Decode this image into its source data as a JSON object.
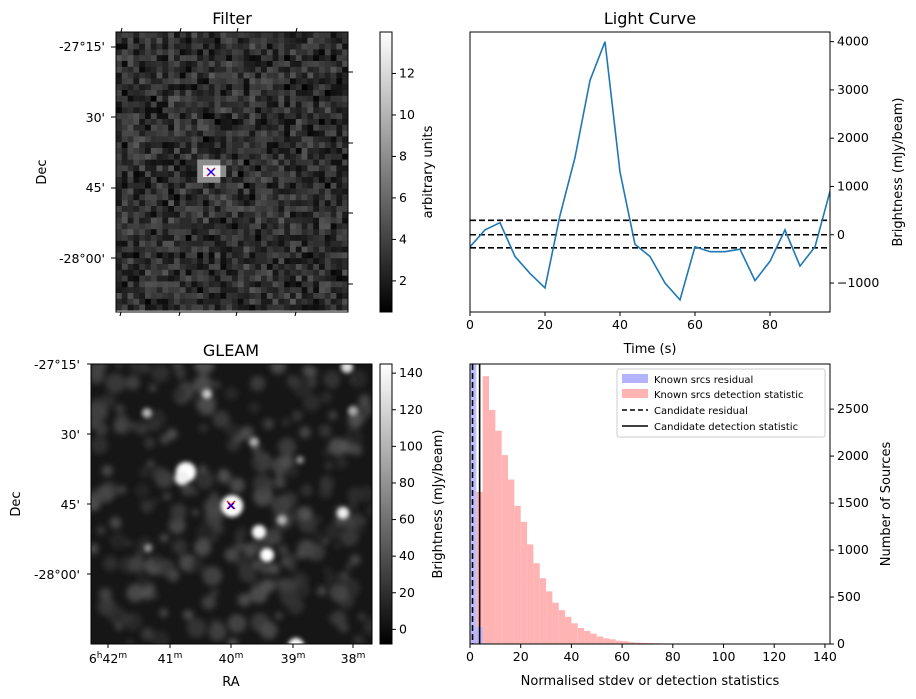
{
  "panels": {
    "filter": {
      "title": "Filter",
      "ylabel": "Dec",
      "colorbar_label": "arbitrary units"
    },
    "light_curve": {
      "title": "Light Curve",
      "xlabel": "Time (s)",
      "ylabel": "Brightness (mJy/beam)"
    },
    "gleam": {
      "title": "GLEAM",
      "xlabel": "RA",
      "ylabel": "Dec",
      "colorbar_label": "Brightness (mJy/beam)"
    },
    "histogram": {
      "xlabel": "Normalised stdev or detection statistics",
      "ylabel": "Number of Sources"
    }
  },
  "dec_ticks": [
    "-27°15'",
    "30'",
    "45'",
    "-28°00'"
  ],
  "ra_ticks": [
    {
      "main": "6",
      "sup1": "h",
      "mid": "42",
      "sup2": "m"
    },
    {
      "main": "41",
      "sup1": "",
      "mid": "",
      "sup2": "m"
    },
    {
      "main": "40",
      "sup1": "",
      "mid": "",
      "sup2": "m"
    },
    {
      "main": "39",
      "sup1": "",
      "mid": "",
      "sup2": "m"
    },
    {
      "main": "38",
      "sup1": "",
      "mid": "",
      "sup2": "m"
    }
  ],
  "colors": {
    "line": "#1f77b4",
    "known_residual": "#b3b3ff",
    "known_detection": "#ffb3b3",
    "marker_red": "#ff0000",
    "marker_blue": "#0000ff"
  },
  "chart_data": [
    {
      "type": "heatmap",
      "title": "Filter",
      "ylabel": "Dec",
      "colorbar": {
        "label": "arbitrary units",
        "range": [
          0.5,
          14
        ],
        "ticks": [
          2,
          4,
          6,
          8,
          10,
          12
        ]
      },
      "yticks": [
        "-27°15'",
        "30'",
        "45'",
        "-28°00'"
      ],
      "grid": false,
      "description_values": {
        "peak": 14,
        "background_range": [
          1,
          5
        ]
      }
    },
    {
      "type": "line",
      "title": "Light Curve",
      "xlabel": "Time (s)",
      "ylabel": "Brightness (mJy/beam)",
      "xlim": [
        0,
        96
      ],
      "ylim": [
        -1600,
        4200
      ],
      "xticks": [
        0,
        20,
        40,
        60,
        80
      ],
      "yticks": [
        -1000,
        0,
        1000,
        2000,
        3000,
        4000
      ],
      "x": [
        0,
        4,
        8,
        12,
        16,
        20,
        24,
        28,
        32,
        36,
        40,
        44,
        48,
        52,
        56,
        60,
        64,
        68,
        72,
        76,
        80,
        84,
        88,
        92,
        96
      ],
      "y": [
        -250,
        100,
        250,
        -450,
        -800,
        -1100,
        400,
        1600,
        3200,
        4000,
        1300,
        -200,
        -450,
        -1000,
        -1350,
        -250,
        -350,
        -350,
        -300,
        -950,
        -550,
        100,
        -650,
        -250,
        900
      ],
      "hlines": [
        {
          "y": 300,
          "style": "dashed"
        },
        {
          "y": 0,
          "style": "dashed"
        },
        {
          "y": -270,
          "style": "dashed"
        }
      ]
    },
    {
      "type": "heatmap",
      "title": "GLEAM",
      "xlabel": "RA",
      "ylabel": "Dec",
      "colorbar": {
        "label": "Brightness (mJy/beam)",
        "range": [
          -8,
          145
        ],
        "ticks": [
          0,
          20,
          40,
          60,
          80,
          100,
          120,
          140
        ]
      },
      "yticks": [
        "-27°15'",
        "30'",
        "45'",
        "-28°00'"
      ],
      "grid": false
    },
    {
      "type": "bar",
      "xlabel": "Normalised stdev or detection statistics",
      "ylabel": "Number of Sources",
      "xlim": [
        0,
        142
      ],
      "ylim": [
        0,
        2980
      ],
      "xticks": [
        0,
        20,
        40,
        60,
        80,
        100,
        120,
        140
      ],
      "yticks": [
        0,
        500,
        1000,
        1500,
        2000,
        2500
      ],
      "legend": "top-right",
      "bin_width": 2.5,
      "series": [
        {
          "name": "Known srcs residual",
          "bins": [
            [
              0,
              2980
            ],
            [
              2.5,
              180
            ],
            [
              5,
              10
            ]
          ]
        },
        {
          "name": "Known srcs detection statistic",
          "bins": [
            [
              0,
              130
            ],
            [
              2.5,
              1620
            ],
            [
              5,
              2850
            ],
            [
              7.5,
              2490
            ],
            [
              10,
              2270
            ],
            [
              12.5,
              2010
            ],
            [
              15,
              1750
            ],
            [
              17.5,
              1470
            ],
            [
              20,
              1300
            ],
            [
              22.5,
              1060
            ],
            [
              25,
              860
            ],
            [
              27.5,
              700
            ],
            [
              30,
              560
            ],
            [
              32.5,
              440
            ],
            [
              35,
              360
            ],
            [
              37.5,
              290
            ],
            [
              40,
              220
            ],
            [
              42.5,
              170
            ],
            [
              45,
              140
            ],
            [
              47.5,
              110
            ],
            [
              50,
              80
            ],
            [
              52.5,
              60
            ],
            [
              55,
              50
            ],
            [
              57.5,
              35
            ],
            [
              60,
              30
            ],
            [
              62.5,
              20
            ],
            [
              65,
              15
            ],
            [
              67.5,
              12
            ],
            [
              70,
              10
            ],
            [
              72.5,
              8
            ],
            [
              75,
              6
            ],
            [
              77.5,
              5
            ],
            [
              80,
              4
            ],
            [
              82.5,
              4
            ],
            [
              85,
              3
            ],
            [
              87.5,
              3
            ],
            [
              90,
              2
            ],
            [
              92.5,
              2
            ],
            [
              95,
              2
            ],
            [
              97.5,
              2
            ],
            [
              100,
              2
            ],
            [
              102.5,
              2
            ],
            [
              105,
              2
            ],
            [
              107.5,
              2
            ],
            [
              110,
              2
            ],
            [
              112.5,
              2
            ],
            [
              115,
              2
            ],
            [
              117.5,
              2
            ],
            [
              120,
              2
            ],
            [
              122.5,
              2
            ],
            [
              125,
              2
            ],
            [
              127.5,
              2
            ],
            [
              130,
              2
            ],
            [
              132.5,
              2
            ],
            [
              135,
              2
            ],
            [
              137.5,
              2
            ],
            [
              140,
              2
            ]
          ]
        }
      ],
      "vlines": [
        {
          "name": "Candidate residual",
          "x": 1.0,
          "style": "dashed"
        },
        {
          "name": "Candidate detection statistic",
          "x": 3.8,
          "style": "solid"
        }
      ]
    }
  ]
}
